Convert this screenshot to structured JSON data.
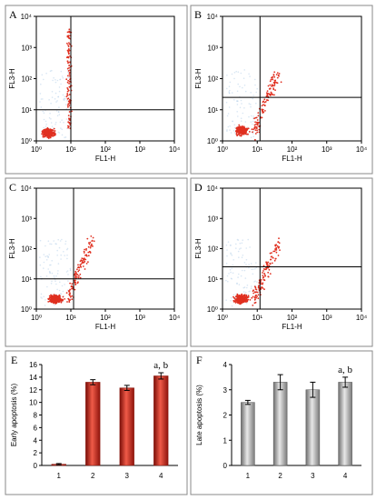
{
  "colors": {
    "dot": "#e03020",
    "haze": "#b8d2ea",
    "red_bar": "#d42a1e",
    "gray_bar": "#a6a6a6",
    "frame": "#8a8a8a"
  },
  "flow_panels": [
    {
      "label": "A",
      "xlabel": "FL1-H",
      "ylabel": "FL3-H",
      "quadrant_lines": {
        "x": 10,
        "y": 10
      },
      "tick_labels": [
        "10⁰",
        "10¹",
        "10²",
        "10³",
        "10⁴"
      ]
    },
    {
      "label": "B",
      "xlabel": "FL1-H",
      "ylabel": "FL3-H",
      "quadrant_lines": {
        "x": 12,
        "y": 25
      },
      "tick_labels": [
        "10⁰",
        "10¹",
        "10²",
        "10³",
        "10⁴"
      ]
    },
    {
      "label": "C",
      "xlabel": "FL1-H",
      "ylabel": "FL3-H",
      "quadrant_lines": {
        "x": 12,
        "y": 10
      },
      "tick_labels": [
        "10⁰",
        "10¹",
        "10²",
        "10³",
        "10⁴"
      ]
    },
    {
      "label": "D",
      "xlabel": "FL1-H",
      "ylabel": "FL3-H",
      "quadrant_lines": {
        "x": 12,
        "y": 25
      },
      "tick_labels": [
        "10⁰",
        "10¹",
        "10²",
        "10³",
        "10⁴"
      ]
    }
  ],
  "chart_data": [
    {
      "type": "bar",
      "panel_label": "E",
      "categories": [
        "1",
        "2",
        "3",
        "4"
      ],
      "values": [
        0.2,
        13.2,
        12.3,
        14.2
      ],
      "errors": [
        0.1,
        0.4,
        0.4,
        0.5
      ],
      "ylabel": "Early apoptosis (%)",
      "ylim": [
        0,
        16
      ],
      "yticks": [
        0,
        2,
        4,
        6,
        8,
        10,
        12,
        14,
        16
      ],
      "annotation": "a, b",
      "color": "#d42a1e"
    },
    {
      "type": "bar",
      "panel_label": "F",
      "categories": [
        "1",
        "2",
        "3",
        "4"
      ],
      "values": [
        2.5,
        3.3,
        3.0,
        3.3
      ],
      "errors": [
        0.08,
        0.3,
        0.3,
        0.2
      ],
      "ylabel": "Late apoptosis (%)",
      "ylim": [
        0,
        4
      ],
      "yticks": [
        0,
        1,
        2,
        3,
        4
      ],
      "annotation": "a, b",
      "color": "#a6a6a6"
    }
  ]
}
